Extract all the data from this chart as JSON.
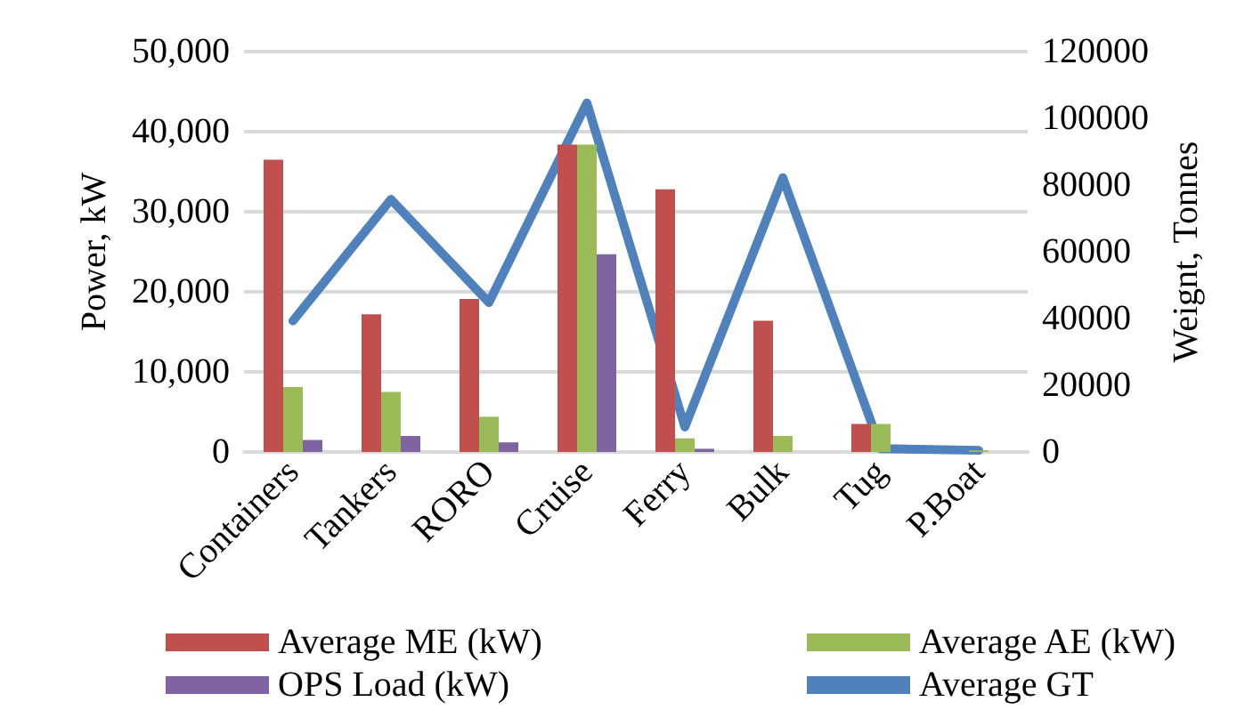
{
  "chart_data": {
    "type": "bar",
    "categories": [
      "Containers",
      "Tankers",
      "RORO",
      "Cruise",
      "Ferry",
      "Bulk",
      "Tug",
      "P.Boat"
    ],
    "ylabel": "Power, kW",
    "y2label": "Weignt, Tonnes",
    "series": [
      {
        "name": "Average ME (kW)",
        "color": "#c0504d",
        "values": [
          36500,
          17200,
          19100,
          38400,
          32800,
          16400,
          3500,
          null
        ]
      },
      {
        "name": "Average AE (kW)",
        "color": "#9bbb59",
        "values": [
          8100,
          7500,
          4400,
          38400,
          1700,
          2000,
          3500,
          200
        ]
      },
      {
        "name": "OPS Load (kW)",
        "color": "#8064a2",
        "values": [
          1500,
          2000,
          1200,
          24700,
          400,
          null,
          null,
          null
        ]
      },
      {
        "name": "Average GT",
        "type": "line",
        "axis": "y2",
        "color": "#4f81bd",
        "marker": "none",
        "values": [
          39300,
          75700,
          44800,
          104600,
          7500,
          82200,
          1000,
          500
        ]
      }
    ],
    "ylim": [
      0,
      50000
    ],
    "yticks": [
      {
        "value": 0,
        "label": "0"
      },
      {
        "value": 10000,
        "label": "10,000"
      },
      {
        "value": 20000,
        "label": "20,000"
      },
      {
        "value": 30000,
        "label": "30,000"
      },
      {
        "value": 40000,
        "label": "40,000"
      },
      {
        "value": 50000,
        "label": "50,000"
      }
    ],
    "y2lim": [
      0,
      120000
    ],
    "y2ticks": [
      0,
      20000,
      40000,
      60000,
      80000,
      100000,
      120000
    ],
    "grid": "y",
    "legend": "bottom"
  }
}
